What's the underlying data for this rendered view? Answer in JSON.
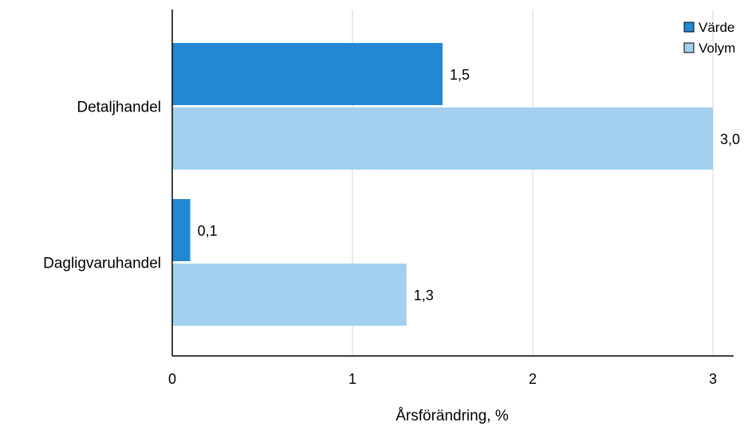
{
  "chart_data": {
    "type": "bar",
    "orientation": "horizontal",
    "title": "",
    "xlabel": "Årsförändring, %",
    "ylabel": "",
    "categories": [
      "Detaljhandel",
      "Dagligvaruhandel"
    ],
    "series": [
      {
        "name": "Värde",
        "values": [
          1.5,
          0.1
        ],
        "value_labels": [
          "1,5",
          "0,1"
        ],
        "color": "#2388D4"
      },
      {
        "name": "Volym",
        "values": [
          3.0,
          1.3
        ],
        "value_labels": [
          "3,0",
          "1,3"
        ],
        "color": "#A2D0EE"
      }
    ],
    "xlim": [
      0,
      3.1
    ],
    "xticks": [
      0,
      1,
      2,
      3
    ],
    "xtick_labels": [
      "0",
      "1",
      "2",
      "3"
    ],
    "grid": "vertical",
    "grid_color": "#dcdcdc",
    "legend_position": "top-right"
  }
}
